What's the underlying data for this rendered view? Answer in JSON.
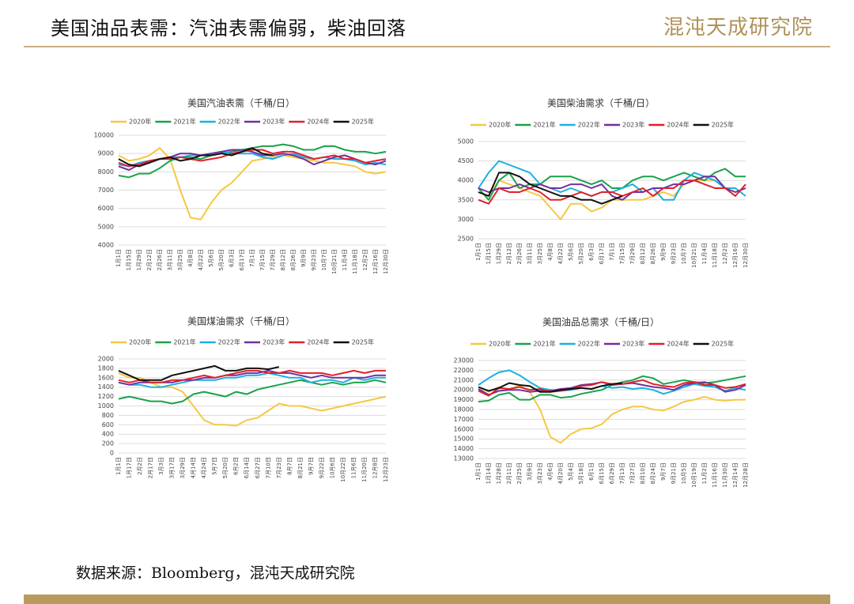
{
  "header": {
    "title": "美国油品表需：汽油表需偏弱，柴油回落",
    "logo": "混沌天成研究院"
  },
  "source": "数据来源：Bloomberg，混沌天成研究院",
  "chart_data": [
    {
      "type": "line",
      "title": "美国汽油表需（千桶/日）",
      "categories": [
        "1月1日",
        "1月15日",
        "1月29日",
        "2月12日",
        "2月26日",
        "3月11日",
        "3月25日",
        "4月8日",
        "4月22日",
        "5月6日",
        "5月20日",
        "6月3日",
        "6月17日",
        "7月1日",
        "7月15日",
        "7月29日",
        "8月12日",
        "8月26日",
        "9月9日",
        "9月23日",
        "10月7日",
        "10月21日",
        "11月4日",
        "11月18日",
        "12月2日",
        "12月16日",
        "12月30日"
      ],
      "ylim": [
        4000,
        10000
      ],
      "yticks": [
        4000,
        5000,
        6000,
        7000,
        8000,
        9000,
        10000
      ],
      "series": [
        {
          "name": "2020年",
          "color": "#f5c842",
          "values": [
            8900,
            8600,
            8700,
            8900,
            9300,
            8700,
            7000,
            5500,
            5400,
            6300,
            7000,
            7400,
            8000,
            8600,
            8700,
            8800,
            8900,
            8800,
            8700,
            8600,
            8500,
            8500,
            8400,
            8300,
            8000,
            7900,
            8000
          ]
        },
        {
          "name": "2021年",
          "color": "#1aa24a",
          "values": [
            7800,
            7700,
            7900,
            7900,
            8200,
            8600,
            8800,
            8800,
            8700,
            8900,
            9000,
            9100,
            9200,
            9300,
            9400,
            9400,
            9500,
            9400,
            9200,
            9200,
            9400,
            9400,
            9200,
            9100,
            9100,
            9000,
            9100
          ]
        },
        {
          "name": "2022年",
          "color": "#1ab0e0",
          "values": [
            8400,
            8300,
            8500,
            8600,
            8700,
            8800,
            8800,
            8900,
            8900,
            9000,
            9100,
            9000,
            9000,
            9000,
            8800,
            8700,
            8900,
            9000,
            8800,
            8700,
            8800,
            8700,
            8700,
            8600,
            8400,
            8500,
            8400
          ]
        },
        {
          "name": "2023年",
          "color": "#7030a0",
          "values": [
            8300,
            8100,
            8400,
            8500,
            8700,
            8800,
            9000,
            9000,
            8900,
            9000,
            9100,
            9200,
            9200,
            9100,
            8900,
            8900,
            9000,
            8900,
            8700,
            8400,
            8600,
            8800,
            8900,
            8700,
            8500,
            8400,
            8600
          ]
        },
        {
          "name": "2024年",
          "color": "#e0202a",
          "values": [
            8500,
            8300,
            8400,
            8600,
            8700,
            8700,
            8800,
            8700,
            8600,
            8700,
            8800,
            9000,
            9100,
            9200,
            9200,
            9000,
            9100,
            9100,
            8900,
            8700,
            8800,
            8900,
            8700,
            8700,
            8500,
            8600,
            8700
          ]
        },
        {
          "name": "2025年",
          "color": "#111111",
          "values": [
            8700,
            8400,
            8300,
            8500,
            8700,
            8800,
            8600,
            8700,
            8900,
            8900,
            9000,
            8900,
            9100,
            9300,
            9000,
            8900,
            null,
            null,
            null,
            null,
            null,
            null,
            null,
            null,
            null,
            null,
            null
          ]
        }
      ]
    },
    {
      "type": "line",
      "title": "美国柴油需求（千桶/日）",
      "categories": [
        "1月1日",
        "1月15日",
        "1月29日",
        "2月12日",
        "2月26日",
        "3月11日",
        "3月25日",
        "4月8日",
        "4月22日",
        "5月6日",
        "5月20日",
        "6月3日",
        "6月17日",
        "7月1日",
        "7月15日",
        "7月29日",
        "8月12日",
        "8月26日",
        "9月9日",
        "9月23日",
        "10月7日",
        "10月21日",
        "11月4日",
        "11月18日",
        "12月2日",
        "12月16日",
        "12月30日"
      ],
      "ylim": [
        2500,
        5000
      ],
      "yticks": [
        2500,
        3000,
        3500,
        4000,
        4500,
        5000
      ],
      "series": [
        {
          "name": "2020年",
          "color": "#f5c842",
          "values": [
            3700,
            3600,
            4000,
            3900,
            3800,
            3700,
            3600,
            3300,
            3000,
            3400,
            3400,
            3200,
            3300,
            3500,
            3500,
            3500,
            3500,
            3600,
            3700,
            3600,
            3900,
            4000,
            4000,
            4000,
            3800,
            3700,
            3800
          ]
        },
        {
          "name": "2021年",
          "color": "#1aa24a",
          "values": [
            3800,
            3500,
            4000,
            4200,
            3800,
            3900,
            3900,
            4100,
            4100,
            4100,
            4000,
            3900,
            4000,
            3800,
            3800,
            4000,
            4100,
            4100,
            4000,
            4100,
            4200,
            4100,
            4000,
            4200,
            4300,
            4100,
            4100
          ]
        },
        {
          "name": "2022年",
          "color": "#1ab0e0",
          "values": [
            3800,
            4200,
            4500,
            4400,
            4300,
            4200,
            3900,
            3800,
            3700,
            3800,
            3700,
            3600,
            3700,
            3700,
            3800,
            3900,
            3700,
            3800,
            3500,
            3500,
            4000,
            4200,
            4100,
            4000,
            3800,
            3800,
            3600
          ]
        },
        {
          "name": "2023年",
          "color": "#7030a0",
          "values": [
            3800,
            3700,
            3800,
            3800,
            3900,
            3800,
            3900,
            3800,
            3800,
            3900,
            3900,
            3800,
            3900,
            3600,
            3500,
            3700,
            3700,
            3800,
            3800,
            3900,
            3900,
            4000,
            4100,
            4100,
            3800,
            3700,
            3800
          ]
        },
        {
          "name": "2024年",
          "color": "#e0202a",
          "values": [
            3500,
            3400,
            3800,
            3700,
            3700,
            3800,
            3700,
            3500,
            3500,
            3600,
            3700,
            3600,
            3700,
            3700,
            3600,
            3700,
            3800,
            3600,
            3800,
            3800,
            4000,
            4000,
            3900,
            3800,
            3800,
            3600,
            3900
          ]
        },
        {
          "name": "2025年",
          "color": "#111111",
          "values": [
            3700,
            3600,
            4200,
            4200,
            4100,
            3900,
            3800,
            3700,
            3600,
            3600,
            3500,
            3500,
            3400,
            3500,
            3600,
            null,
            null,
            null,
            null,
            null,
            null,
            null,
            null,
            null,
            null,
            null,
            null
          ]
        }
      ]
    },
    {
      "type": "line",
      "title": "美国煤油需求（千桶/日）",
      "categories": [
        "1月1日",
        "1月17日",
        "2月2日",
        "2月17日",
        "3月3日",
        "3月17日",
        "3月29日",
        "4月14日",
        "4月24日",
        "5月7日",
        "5月20日",
        "6月2日",
        "6月14日",
        "6月27日",
        "7月10日",
        "7月23日",
        "8月7日",
        "8月21日",
        "9月7日",
        "9月22日",
        "10月6日",
        "10月22日",
        "11月6日",
        "11月20日",
        "12月8日",
        "12月23日"
      ],
      "ylim": [
        0,
        2000
      ],
      "yticks": [
        0,
        200,
        400,
        600,
        800,
        1000,
        1200,
        1400,
        1600,
        1800,
        2000
      ],
      "series": [
        {
          "name": "2020年",
          "color": "#f5c842",
          "values": [
            1700,
            1600,
            1600,
            1500,
            1400,
            1400,
            1300,
            1000,
            700,
            600,
            600,
            580,
            700,
            750,
            900,
            1050,
            1000,
            1000,
            950,
            900,
            950,
            1000,
            1050,
            1100,
            1150,
            1200
          ]
        },
        {
          "name": "2021年",
          "color": "#1aa24a",
          "values": [
            1150,
            1200,
            1150,
            1100,
            1100,
            1050,
            1100,
            1250,
            1300,
            1250,
            1200,
            1300,
            1250,
            1350,
            1400,
            1450,
            1500,
            1550,
            1500,
            1450,
            1500,
            1450,
            1500,
            1500,
            1550,
            1500
          ]
        },
        {
          "name": "2022年",
          "color": "#1ab0e0",
          "values": [
            1500,
            1450,
            1450,
            1400,
            1400,
            1450,
            1500,
            1550,
            1550,
            1550,
            1600,
            1600,
            1650,
            1650,
            1700,
            1650,
            1600,
            1600,
            1500,
            1550,
            1550,
            1500,
            1600,
            1550,
            1600,
            1600
          ]
        },
        {
          "name": "2023年",
          "color": "#7030a0",
          "values": [
            1500,
            1450,
            1500,
            1500,
            1500,
            1500,
            1550,
            1550,
            1600,
            1600,
            1650,
            1650,
            1700,
            1700,
            1750,
            1700,
            1700,
            1650,
            1600,
            1650,
            1600,
            1600,
            1600,
            1600,
            1650,
            1650
          ]
        },
        {
          "name": "2024年",
          "color": "#e0202a",
          "values": [
            1550,
            1500,
            1550,
            1500,
            1500,
            1550,
            1550,
            1600,
            1650,
            1600,
            1650,
            1700,
            1750,
            1750,
            1700,
            1700,
            1750,
            1700,
            1700,
            1700,
            1650,
            1700,
            1750,
            1700,
            1750,
            1750
          ]
        },
        {
          "name": "2025年",
          "color": "#111111",
          "values": [
            1750,
            1650,
            1550,
            1550,
            1550,
            1650,
            1700,
            1750,
            1800,
            1850,
            1750,
            1750,
            1800,
            1800,
            1780,
            1830,
            null,
            null,
            null,
            null,
            null,
            null,
            null,
            null,
            null,
            null
          ]
        }
      ]
    },
    {
      "type": "line",
      "title": "美国油品总需求（千桶/日）",
      "categories": [
        "1月1日",
        "1月14日",
        "1月28日",
        "2月11日",
        "2月25日",
        "3月9日",
        "3月23日",
        "4月6日",
        "4月20日",
        "5月4日",
        "5月18日",
        "6月1日",
        "6月15日",
        "6月29日",
        "7月13日",
        "7月27日",
        "8月10日",
        "8月24日",
        "9月7日",
        "9月21日",
        "10月5日",
        "10月19日",
        "11月2日",
        "11月16日",
        "11月30日",
        "12月14日",
        "12月28日"
      ],
      "ylim": [
        13000,
        23000
      ],
      "yticks": [
        13000,
        14000,
        15000,
        16000,
        17000,
        18000,
        19000,
        20000,
        21000,
        22000,
        23000
      ],
      "series": [
        {
          "name": "2020年",
          "color": "#f5c842",
          "values": [
            20300,
            19800,
            20300,
            20000,
            20500,
            19800,
            18000,
            15200,
            14600,
            15500,
            16000,
            16100,
            16500,
            17500,
            18000,
            18300,
            18300,
            18000,
            17900,
            18300,
            18800,
            19000,
            19300,
            19000,
            18900,
            19000,
            19000
          ]
        },
        {
          "name": "2021年",
          "color": "#1aa24a",
          "values": [
            18800,
            18900,
            19500,
            19700,
            19000,
            19000,
            19500,
            19500,
            19200,
            19300,
            19600,
            19800,
            20000,
            20500,
            20800,
            21000,
            21400,
            21200,
            20600,
            20800,
            21000,
            20800,
            20700,
            20800,
            21000,
            21200,
            21400
          ]
        },
        {
          "name": "2022年",
          "color": "#1ab0e0",
          "values": [
            20500,
            21200,
            21800,
            22000,
            21500,
            20800,
            20200,
            20000,
            19900,
            20000,
            20200,
            20100,
            20400,
            20200,
            20300,
            20100,
            20200,
            20000,
            19600,
            19900,
            20300,
            20600,
            20400,
            20300,
            19900,
            20200,
            20000
          ]
        },
        {
          "name": "2023年",
          "color": "#7030a0",
          "values": [
            20100,
            19500,
            19900,
            20000,
            20000,
            19800,
            19900,
            19900,
            20100,
            20200,
            20500,
            20600,
            20800,
            20500,
            20600,
            20700,
            20500,
            20300,
            20200,
            20000,
            20500,
            20700,
            20800,
            20500,
            19800,
            20000,
            20500
          ]
        },
        {
          "name": "2024年",
          "color": "#e0202a",
          "values": [
            19900,
            19400,
            20200,
            20100,
            20300,
            20000,
            20100,
            19800,
            19900,
            20100,
            20400,
            20500,
            20800,
            20600,
            20600,
            20800,
            21000,
            20600,
            20400,
            20300,
            20700,
            20800,
            20500,
            20500,
            20200,
            20300,
            20600
          ]
        },
        {
          "name": "2025年",
          "color": "#111111",
          "values": [
            20300,
            19900,
            20200,
            20700,
            20500,
            20400,
            19800,
            19800,
            20000,
            20100,
            20200,
            20100,
            20400,
            20600,
            20700,
            null,
            null,
            null,
            null,
            null,
            null,
            null,
            null,
            null,
            null,
            null,
            null
          ]
        }
      ]
    }
  ]
}
